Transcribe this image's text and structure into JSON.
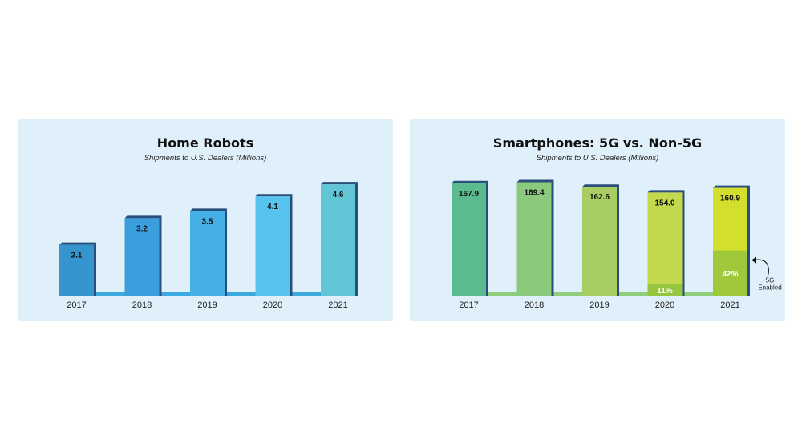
{
  "chart_data": [
    {
      "type": "bar",
      "title": "Home Robots",
      "subtitle": "Shipments to U.S. Dealers (Millions)",
      "categories": [
        "2017",
        "2018",
        "2019",
        "2020",
        "2021"
      ],
      "values": [
        2.1,
        3.2,
        3.5,
        4.1,
        4.6
      ],
      "value_labels": [
        "2.1",
        "3.2",
        "3.5",
        "4.1",
        "4.6"
      ],
      "ylim": [
        0,
        5.2
      ],
      "grid": false,
      "colors": [
        "#3595cf",
        "#3a9fdc",
        "#45b0e6",
        "#57c3ef",
        "#62c5d6"
      ],
      "edge_color": "#2a4d7a",
      "baseline_color": "#3aa9dd"
    },
    {
      "type": "bar",
      "title": "Smartphones: 5G vs. Non-5G",
      "subtitle": "Shipments to U.S. Dealers (Millions)",
      "categories": [
        "2017",
        "2018",
        "2019",
        "2020",
        "2021"
      ],
      "series": [
        {
          "values": [
            167.9,
            169.4,
            162.6,
            154.0,
            160.9
          ],
          "value_labels": [
            "167.9",
            "169.4",
            "162.6",
            "154.0",
            "160.9"
          ]
        }
      ],
      "share_5g": [
        null,
        null,
        null,
        0.11,
        0.42
      ],
      "share_labels": [
        "",
        "",
        "",
        "11%",
        "42%"
      ],
      "annotation": {
        "text": "5G Enabled"
      },
      "ylim": [
        0,
        188
      ],
      "grid": false,
      "colors": [
        "#5cbb8e",
        "#8bc97c",
        "#a8cd62",
        "#c3d84c",
        "#d3df2c"
      ],
      "share_colors": [
        "",
        "",
        "",
        "#96c53f",
        "#9fc93a"
      ],
      "edge_color": "#2a4d7a",
      "baseline_color": "#8fce7a"
    }
  ]
}
